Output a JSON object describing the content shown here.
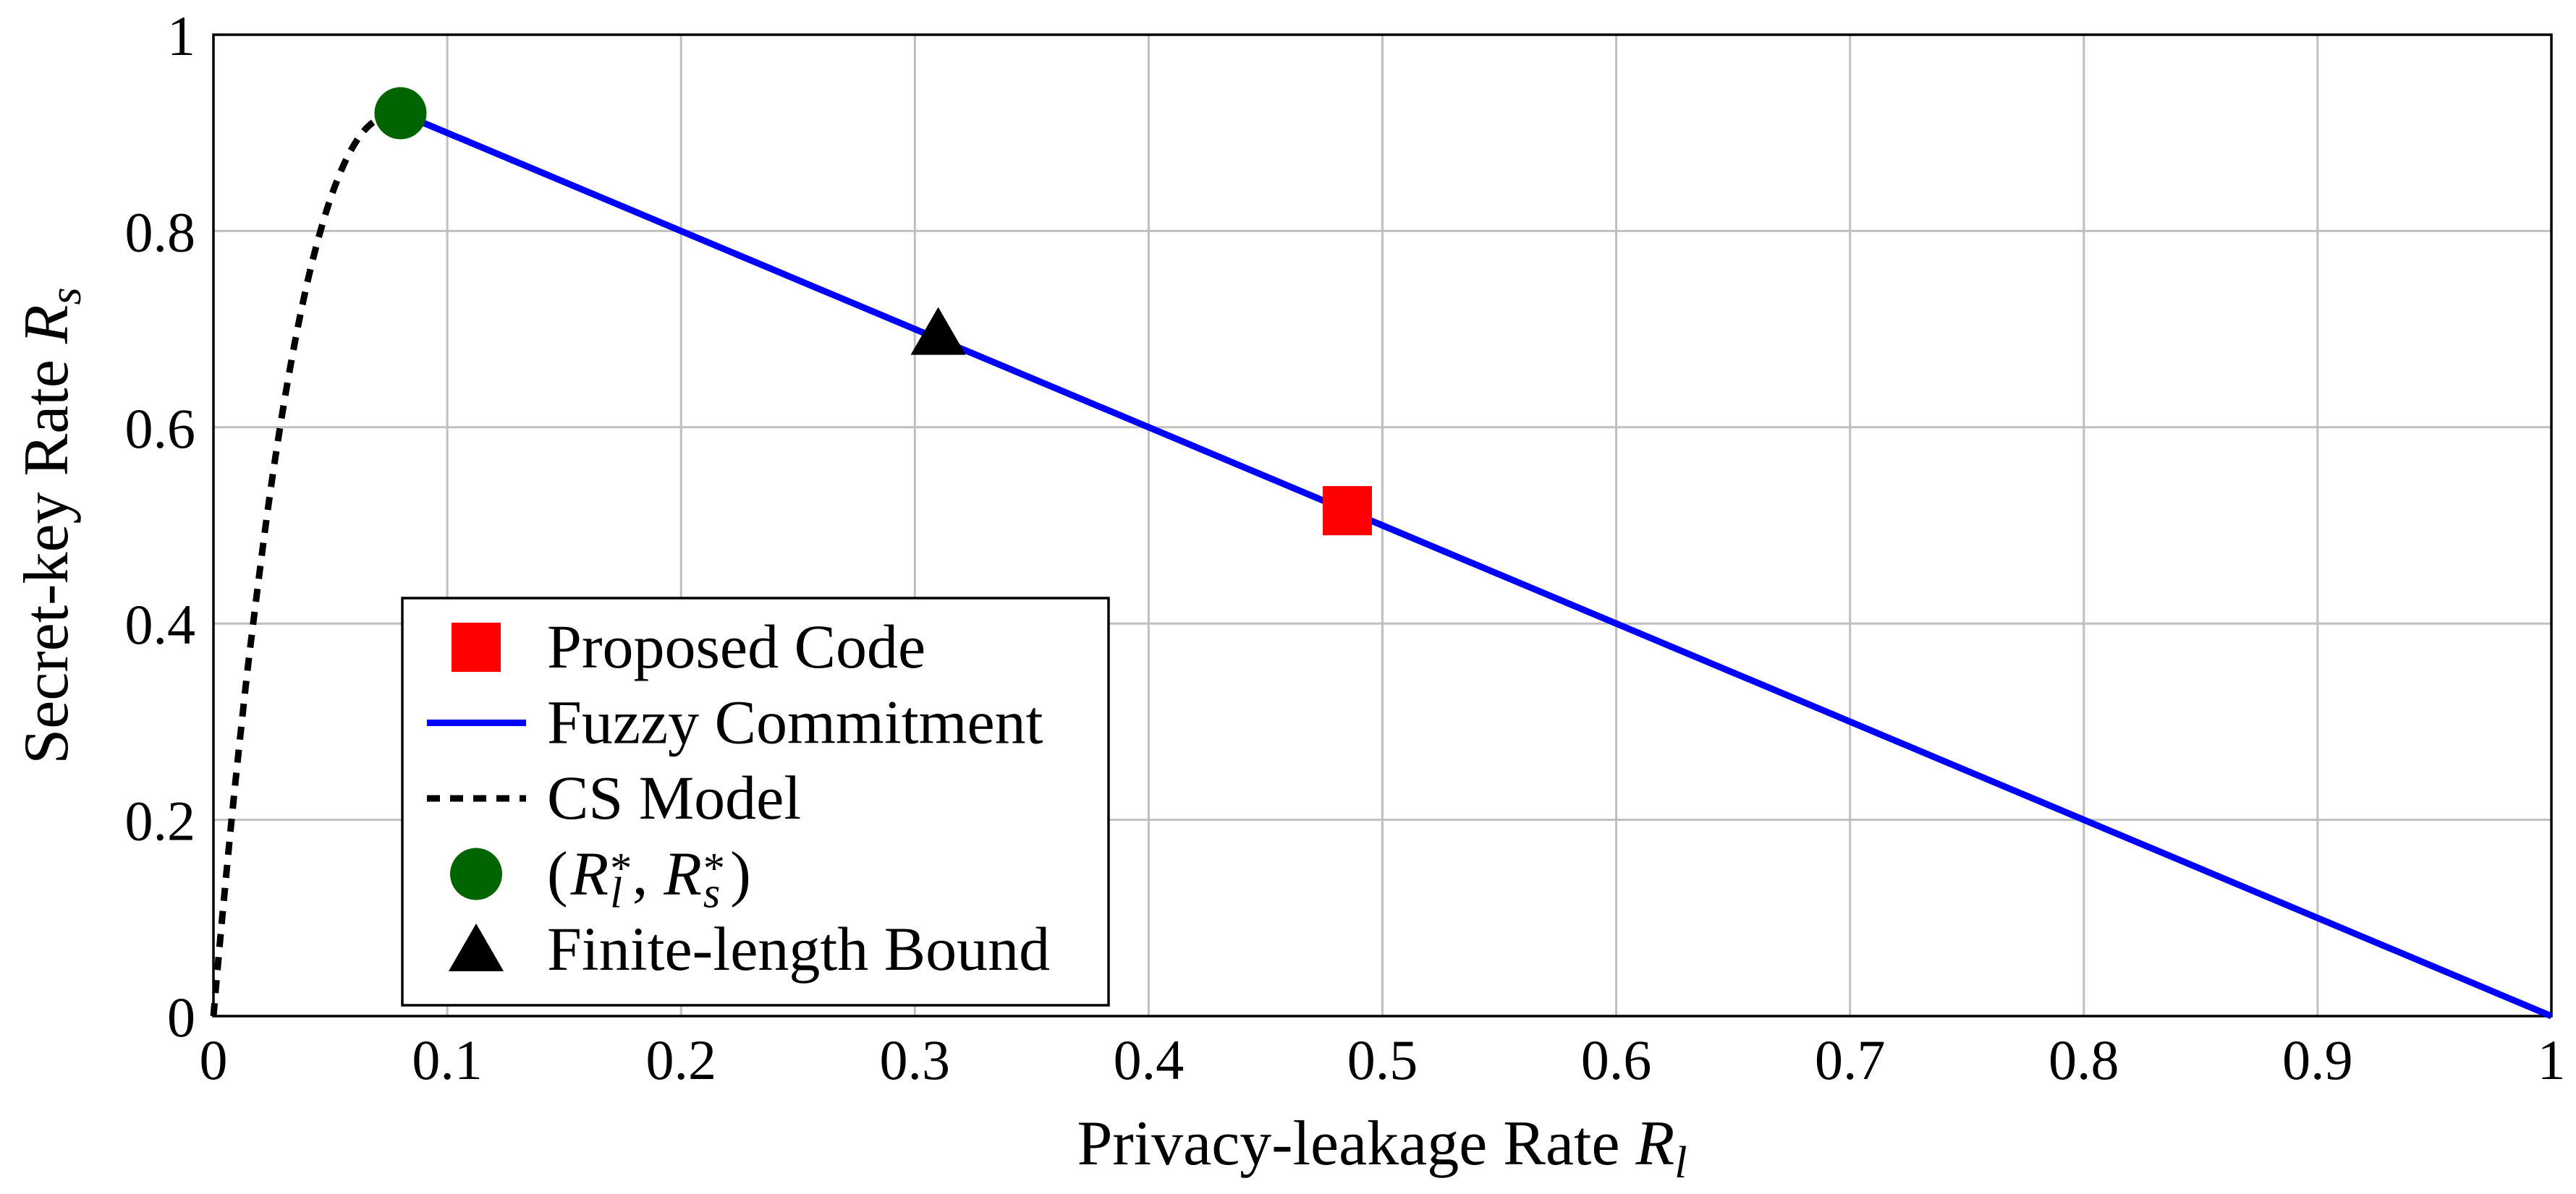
{
  "chart_data": {
    "type": "line",
    "title": "",
    "xlabel": "Privacy-leakage Rate",
    "xlabel_symbol": "R",
    "xlabel_subscript": "l",
    "ylabel": "Secret-key Rate",
    "ylabel_symbol": "R",
    "ylabel_subscript": "s",
    "xlim": [
      0,
      1
    ],
    "ylim": [
      0,
      1
    ],
    "x_ticks": [
      0,
      0.1,
      0.2,
      0.3,
      0.4,
      0.5,
      0.6,
      0.7,
      0.8,
      0.9,
      1
    ],
    "y_ticks": [
      0,
      0.2,
      0.4,
      0.6,
      0.8,
      1
    ],
    "grid": true,
    "legend": {
      "position": "bottom-left"
    },
    "series": [
      {
        "name": "Proposed Code",
        "kind": "scatter",
        "marker": "square",
        "color": "#ff0000",
        "x": [
          0.485
        ],
        "y": [
          0.515
        ]
      },
      {
        "name": "Fuzzy Commitment",
        "kind": "line",
        "style": "solid",
        "color": "#0000ff",
        "x": [
          0.08,
          1
        ],
        "y": [
          0.92,
          0
        ]
      },
      {
        "name": "CS Model",
        "kind": "line",
        "style": "dashed",
        "color": "#000000",
        "x": [
          0,
          0.0016,
          0.004,
          0.008,
          0.012,
          0.016,
          0.024,
          0.032,
          0.04,
          0.048,
          0.056,
          0.064,
          0.072,
          0.08
        ],
        "y": [
          0,
          0.044,
          0.107,
          0.206,
          0.297,
          0.381,
          0.529,
          0.65,
          0.746,
          0.818,
          0.869,
          0.901,
          0.916,
          0.92
        ]
      },
      {
        "name_math": {
          "open": "(",
          "r1": "R",
          "r1_sup": "*",
          "r1_sub": "l",
          "sep": ",",
          "r2": "R",
          "r2_sup": "*",
          "r2_sub": "s",
          "close": ")"
        },
        "kind": "scatter",
        "marker": "circle",
        "color": "#006400",
        "x": [
          0.08
        ],
        "y": [
          0.92
        ]
      },
      {
        "name": "Finite-length Bound",
        "kind": "scatter",
        "marker": "triangle",
        "color": "#000000",
        "x": [
          0.31
        ],
        "y": [
          0.69
        ]
      }
    ]
  }
}
